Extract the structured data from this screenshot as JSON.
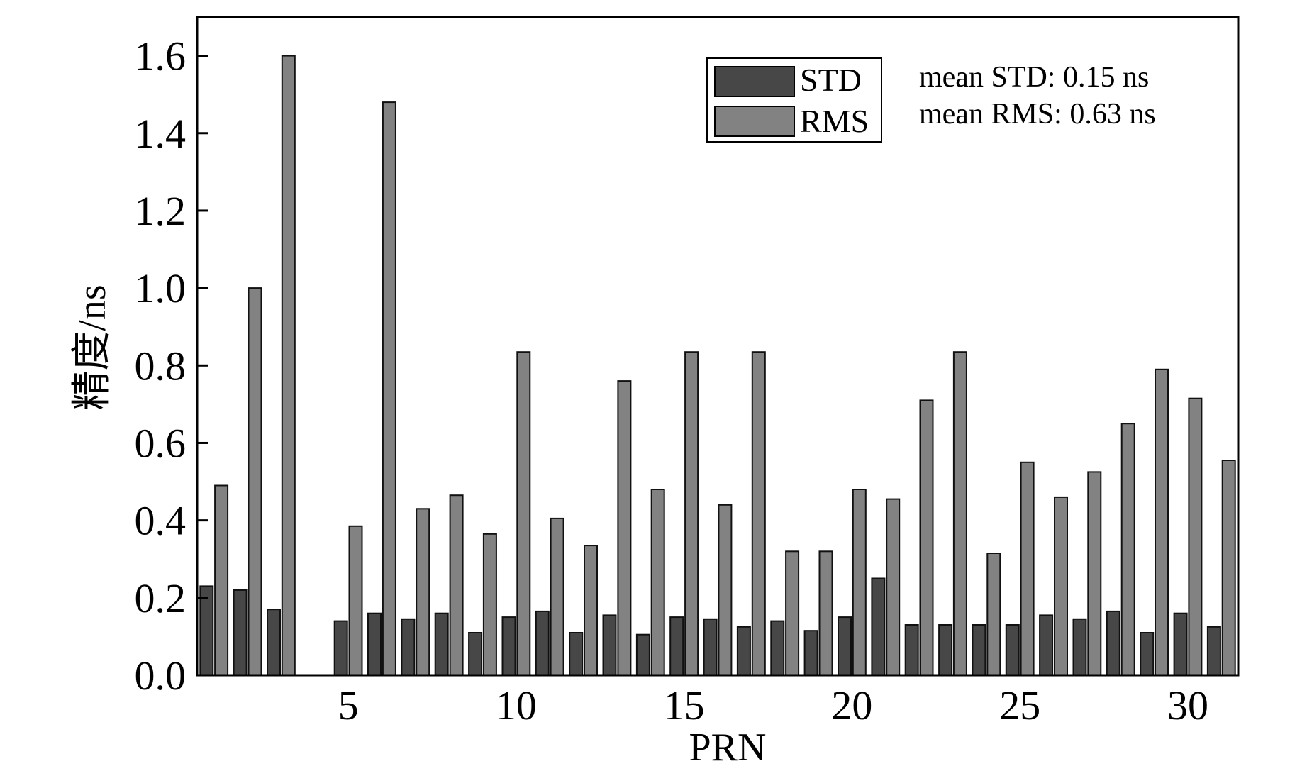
{
  "chart_data": {
    "type": "bar",
    "title": "",
    "xlabel": "PRN",
    "ylabel": "精度/ns",
    "xlim": [
      0.5,
      31.5
    ],
    "ylim": [
      0,
      1.7
    ],
    "x_ticks": [
      5,
      10,
      15,
      20,
      25,
      30
    ],
    "y_ticks": [
      "0.0",
      "0.2",
      "0.4",
      "0.6",
      "0.8",
      "1.0",
      "1.2",
      "1.4",
      "1.6"
    ],
    "grid": false,
    "legend_position": "top-right",
    "categories": [
      1,
      2,
      3,
      4,
      5,
      6,
      7,
      8,
      9,
      10,
      11,
      12,
      13,
      14,
      15,
      16,
      17,
      18,
      19,
      20,
      21,
      22,
      23,
      24,
      25,
      26,
      27,
      28,
      29,
      30,
      31
    ],
    "series": [
      {
        "name": "STD",
        "color": "#474747",
        "values": [
          0.23,
          0.22,
          0.17,
          0,
          0.14,
          0.16,
          0.145,
          0.16,
          0.11,
          0.15,
          0.165,
          0.11,
          0.155,
          0.105,
          0.15,
          0.145,
          0.125,
          0.14,
          0.115,
          0.15,
          0.25,
          0.13,
          0.13,
          0.13,
          0.13,
          0.155,
          0.145,
          0.165,
          0.11,
          0.16,
          0.125
        ]
      },
      {
        "name": "RMS",
        "color": "#828282",
        "values": [
          0.49,
          1.0,
          1.6,
          0,
          0.385,
          1.48,
          0.43,
          0.465,
          0.365,
          0.835,
          0.405,
          0.335,
          0.76,
          0.48,
          0.835,
          0.44,
          0.835,
          0.32,
          0.32,
          0.48,
          0.455,
          0.71,
          0.835,
          0.315,
          0.55,
          0.46,
          0.525,
          0.65,
          0.79,
          0.715,
          0.555
        ]
      }
    ],
    "annotations": [
      "mean STD: 0.15 ns",
      "mean RMS: 0.63 ns"
    ]
  }
}
